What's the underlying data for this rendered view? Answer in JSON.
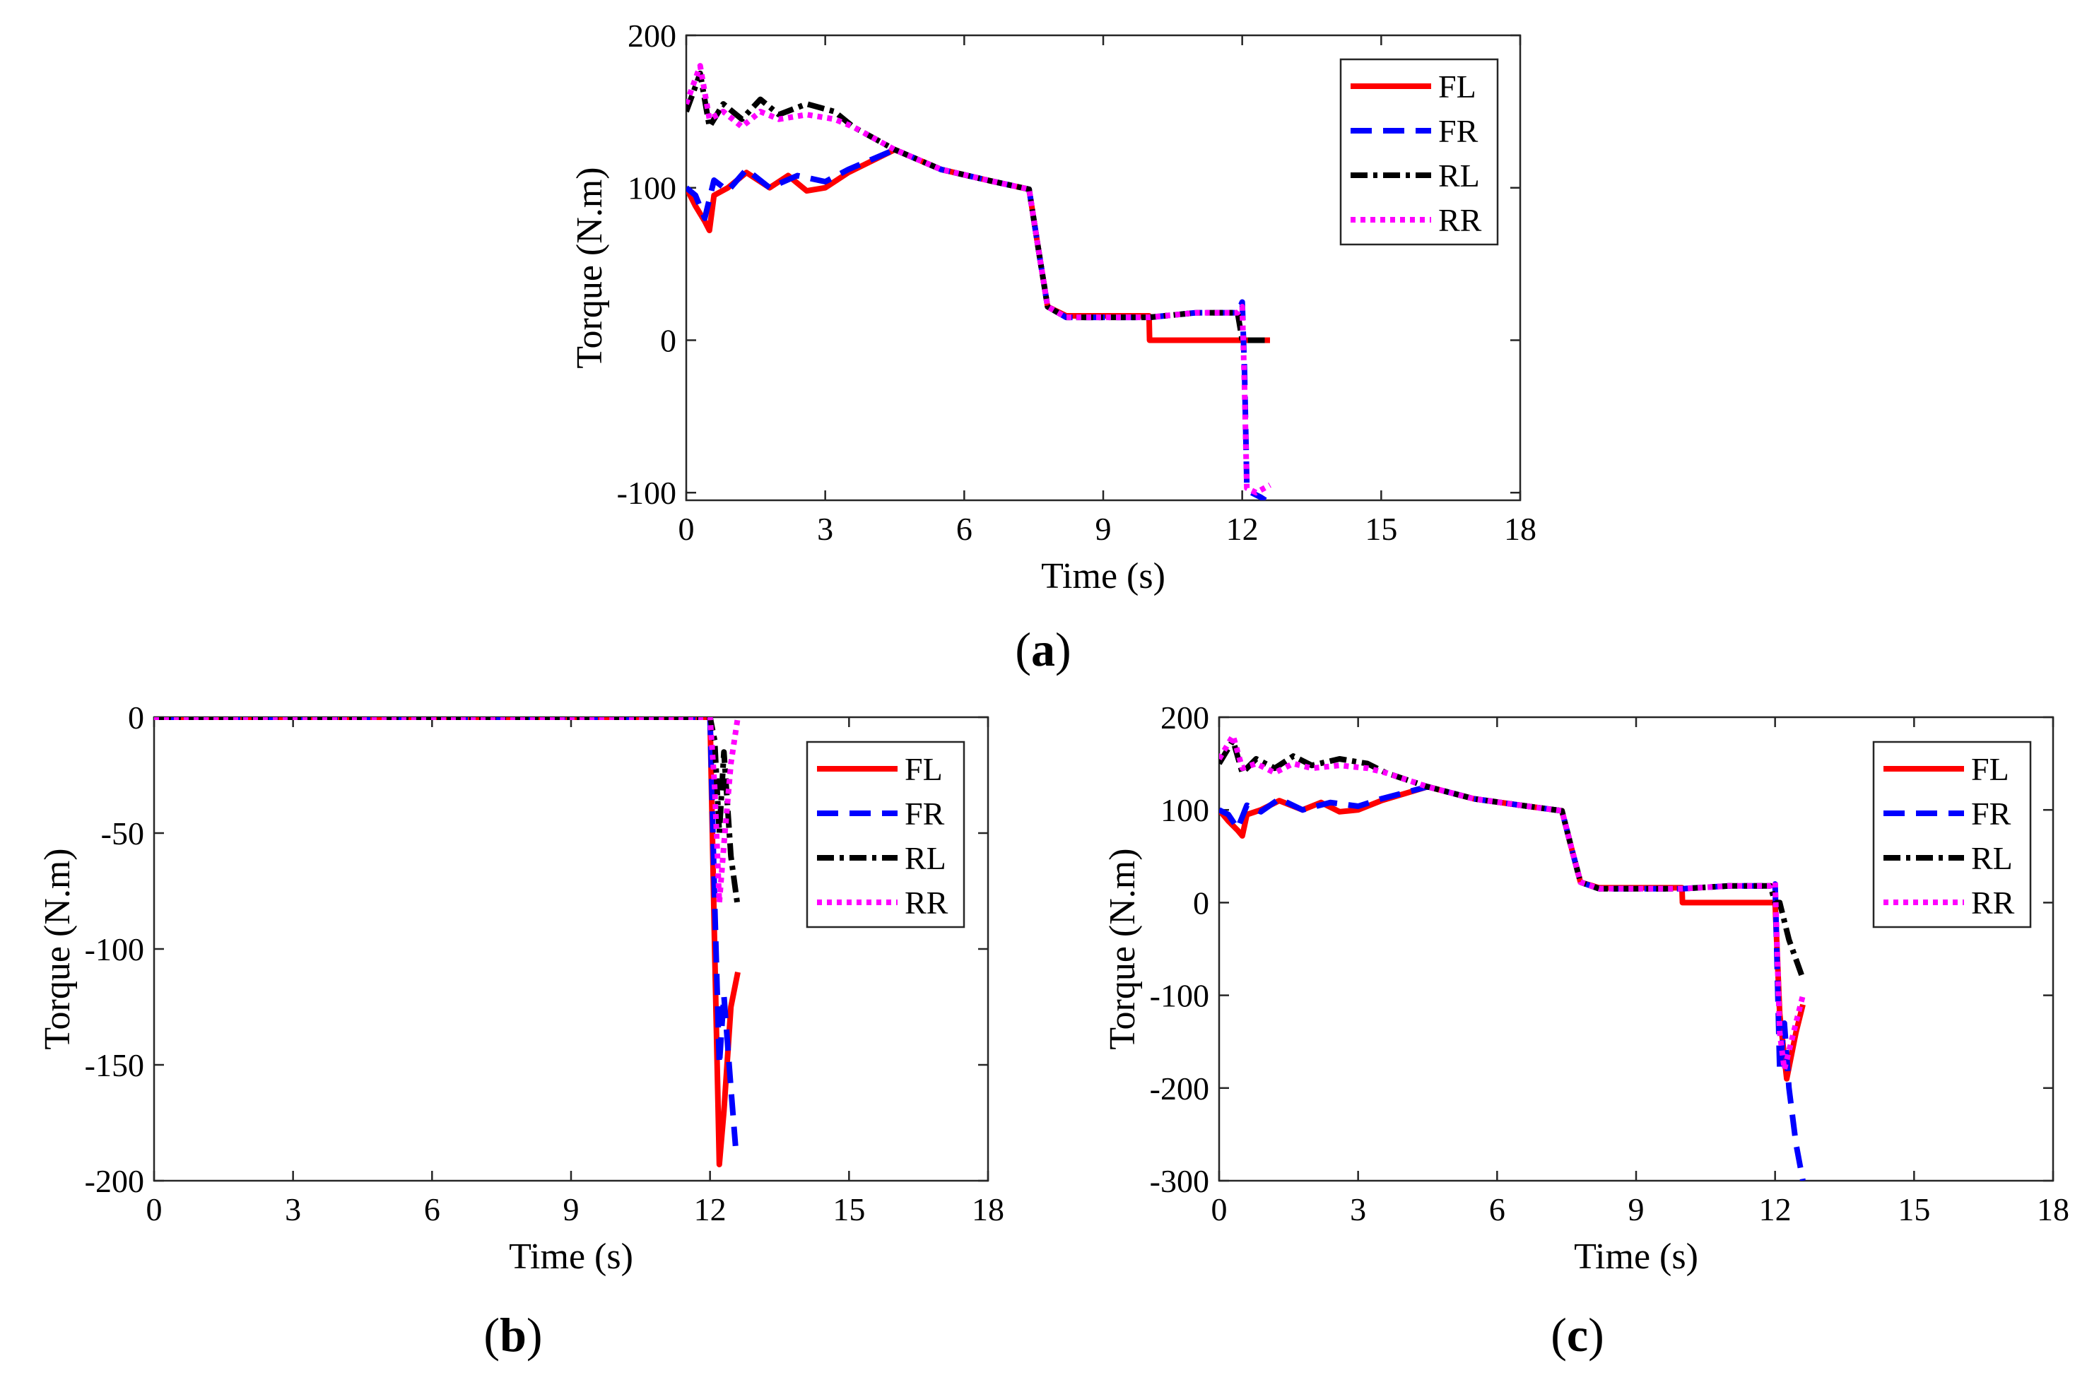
{
  "colors": {
    "FL": "#ff0000",
    "FR": "#0000ff",
    "RL": "#000000",
    "RR": "#ff00ff"
  },
  "chart_data": [
    {
      "type": "line",
      "caption": {
        "open": "(",
        "letter": "a",
        "close": ")"
      },
      "xlabel": "Time (s)",
      "ylabel": "Torque (N.m)",
      "xlim": [
        0,
        18
      ],
      "ylim": [
        -105,
        200
      ],
      "xticks": [
        0,
        3,
        6,
        9,
        12,
        15,
        18
      ],
      "yticks": [
        -100,
        0,
        100,
        200
      ],
      "grid": false,
      "legend_position": "top-right",
      "series": [
        {
          "name": "FL",
          "line": "solid",
          "x": [
            0,
            0.2,
            0.4,
            0.5,
            0.6,
            0.9,
            1.3,
            1.8,
            2.2,
            2.6,
            3.0,
            3.5,
            4.5,
            5.5,
            6.5,
            7.4,
            7.6,
            7.8,
            8.2,
            9.0,
            9.99,
            10.0,
            12.6
          ],
          "y": [
            100,
            88,
            78,
            72,
            95,
            100,
            110,
            100,
            108,
            98,
            100,
            110,
            125,
            112,
            105,
            99,
            60,
            22,
            16,
            16,
            16,
            0,
            0
          ]
        },
        {
          "name": "FR",
          "line": "dashed",
          "x": [
            0,
            0.2,
            0.4,
            0.6,
            0.9,
            1.3,
            1.8,
            2.4,
            3.0,
            3.5,
            4.5,
            5.5,
            6.5,
            7.4,
            7.6,
            7.8,
            8.2,
            9.0,
            10.0,
            11.0,
            11.9,
            12.0,
            12.05,
            12.1,
            12.2,
            12.4,
            12.5
          ],
          "y": [
            100,
            95,
            80,
            105,
            98,
            112,
            100,
            108,
            104,
            112,
            125,
            112,
            105,
            99,
            60,
            22,
            15,
            15,
            15,
            18,
            18,
            25,
            -20,
            -95,
            -100,
            -103,
            -105
          ]
        },
        {
          "name": "RL",
          "line": "dashdot",
          "x": [
            0,
            0.3,
            0.5,
            0.8,
            1.2,
            1.6,
            2.0,
            2.6,
            3.2,
            3.6,
            4.5,
            5.5,
            6.5,
            7.4,
            7.6,
            7.8,
            8.2,
            9.0,
            10.0,
            11.0,
            11.9,
            12.0,
            12.6
          ],
          "y": [
            150,
            175,
            140,
            155,
            145,
            158,
            148,
            155,
            150,
            140,
            125,
            112,
            105,
            99,
            60,
            22,
            15,
            15,
            15,
            18,
            18,
            0,
            0
          ]
        },
        {
          "name": "RR",
          "line": "dotted",
          "x": [
            0,
            0.3,
            0.5,
            0.8,
            1.2,
            1.6,
            2.0,
            2.6,
            3.2,
            3.6,
            4.5,
            5.5,
            6.5,
            7.4,
            7.6,
            7.8,
            8.2,
            9.0,
            10.0,
            11.0,
            11.9,
            12.0,
            12.05,
            12.1,
            12.3,
            12.6
          ],
          "y": [
            155,
            180,
            145,
            150,
            140,
            150,
            145,
            148,
            145,
            140,
            125,
            112,
            105,
            99,
            60,
            22,
            15,
            15,
            15,
            18,
            18,
            22,
            -30,
            -97,
            -100,
            -95
          ]
        }
      ]
    },
    {
      "type": "line",
      "caption": {
        "open": "(",
        "letter": "b",
        "close": ")"
      },
      "xlabel": "Time (s)",
      "ylabel": "Torque (N.m)",
      "xlim": [
        0,
        18
      ],
      "ylim": [
        -200,
        0
      ],
      "xticks": [
        0,
        3,
        6,
        9,
        12,
        15,
        18
      ],
      "yticks": [
        -200,
        -150,
        -100,
        -50,
        0
      ],
      "grid": false,
      "legend_position": "top-right",
      "series": [
        {
          "name": "FL",
          "line": "solid",
          "x": [
            0,
            12.0,
            12.1,
            12.2,
            12.3,
            12.45,
            12.6
          ],
          "y": [
            0,
            0,
            -100,
            -193,
            -170,
            -125,
            -110
          ]
        },
        {
          "name": "FR",
          "line": "dashed",
          "x": [
            0,
            12.0,
            12.1,
            12.2,
            12.3,
            12.45,
            12.55
          ],
          "y": [
            0,
            0,
            -80,
            -150,
            -120,
            -160,
            -185
          ]
        },
        {
          "name": "RL",
          "line": "dashdot",
          "x": [
            0,
            12.0,
            12.1,
            12.2,
            12.3,
            12.45,
            12.6
          ],
          "y": [
            0,
            0,
            -10,
            -50,
            -15,
            -60,
            -82
          ]
        },
        {
          "name": "RR",
          "line": "dotted",
          "x": [
            0,
            12.0,
            12.1,
            12.2,
            12.3,
            12.45,
            12.6
          ],
          "y": [
            0,
            0,
            -30,
            -80,
            -55,
            -20,
            0
          ]
        }
      ]
    },
    {
      "type": "line",
      "caption": {
        "open": "(",
        "letter": "c",
        "close": ")"
      },
      "xlabel": "Time (s)",
      "ylabel": "Torque (N.m)",
      "xlim": [
        0,
        18
      ],
      "ylim": [
        -300,
        200
      ],
      "xticks": [
        0,
        3,
        6,
        9,
        12,
        15,
        18
      ],
      "yticks": [
        -300,
        -200,
        -100,
        0,
        100,
        200
      ],
      "grid": false,
      "legend_position": "top-right",
      "series": [
        {
          "name": "FL",
          "line": "solid",
          "x": [
            0,
            0.2,
            0.4,
            0.5,
            0.6,
            0.9,
            1.3,
            1.8,
            2.2,
            2.6,
            3.0,
            3.5,
            4.5,
            5.5,
            6.5,
            7.4,
            7.6,
            7.8,
            8.2,
            9.0,
            9.99,
            10.0,
            12.0,
            12.1,
            12.25,
            12.45,
            12.6
          ],
          "y": [
            100,
            88,
            78,
            72,
            95,
            100,
            110,
            100,
            108,
            98,
            100,
            110,
            125,
            112,
            105,
            99,
            60,
            22,
            16,
            16,
            16,
            0,
            0,
            -120,
            -190,
            -140,
            -110
          ]
        },
        {
          "name": "FR",
          "line": "dashed",
          "x": [
            0,
            0.2,
            0.4,
            0.6,
            0.9,
            1.3,
            1.8,
            2.4,
            3.0,
            3.5,
            4.5,
            5.5,
            6.5,
            7.4,
            7.6,
            7.8,
            8.2,
            9.0,
            10.0,
            11.0,
            11.9,
            12.0,
            12.1,
            12.2,
            12.3,
            12.45,
            12.6
          ],
          "y": [
            100,
            95,
            80,
            105,
            98,
            112,
            100,
            108,
            104,
            112,
            125,
            112,
            105,
            99,
            60,
            22,
            15,
            15,
            15,
            18,
            18,
            20,
            -180,
            -130,
            -200,
            -260,
            -300
          ]
        },
        {
          "name": "RL",
          "line": "dashdot",
          "x": [
            0,
            0.3,
            0.5,
            0.8,
            1.2,
            1.6,
            2.0,
            2.6,
            3.2,
            3.6,
            4.5,
            5.5,
            6.5,
            7.4,
            7.6,
            7.8,
            8.2,
            9.0,
            10.0,
            11.0,
            11.9,
            12.0,
            12.1,
            12.3,
            12.6
          ],
          "y": [
            150,
            175,
            140,
            155,
            145,
            158,
            148,
            155,
            150,
            140,
            125,
            112,
            105,
            99,
            60,
            22,
            15,
            15,
            15,
            18,
            18,
            0,
            0,
            -40,
            -82
          ]
        },
        {
          "name": "RR",
          "line": "dotted",
          "x": [
            0,
            0.3,
            0.5,
            0.8,
            1.2,
            1.6,
            2.0,
            2.6,
            3.2,
            3.6,
            4.5,
            5.5,
            6.5,
            7.4,
            7.6,
            7.8,
            8.2,
            9.0,
            10.0,
            11.0,
            11.9,
            12.0,
            12.1,
            12.2,
            12.35,
            12.6
          ],
          "y": [
            155,
            180,
            145,
            150,
            140,
            150,
            145,
            148,
            145,
            140,
            125,
            112,
            105,
            99,
            60,
            22,
            15,
            15,
            15,
            18,
            18,
            22,
            -140,
            -180,
            -150,
            -100
          ]
        }
      ]
    }
  ]
}
